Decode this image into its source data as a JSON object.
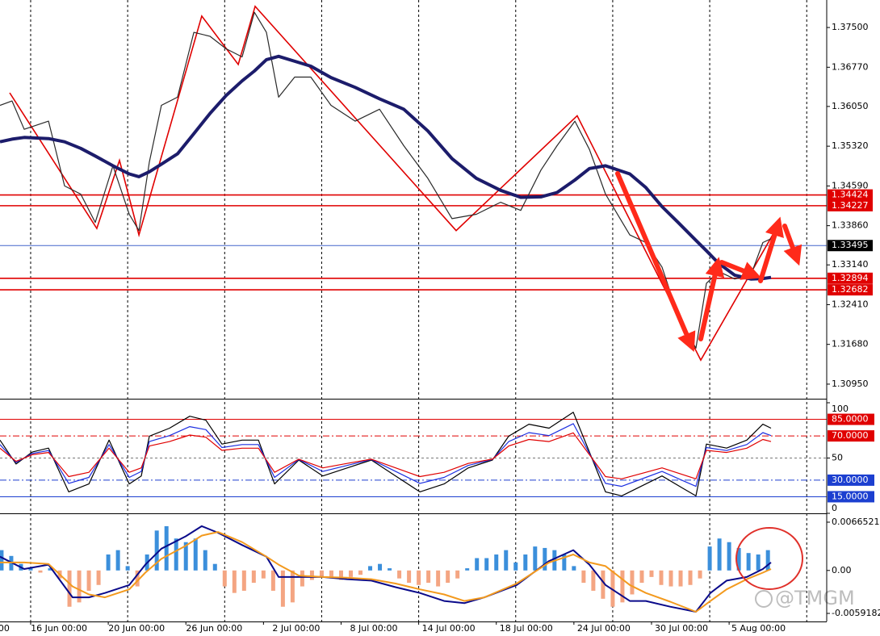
{
  "watermark": "@TMGM",
  "chart_data": [
    {
      "type": "line",
      "xlim": [
        -1.58,
        41.03
      ],
      "xticks": [
        {
          "value": -4,
          "label": "00"
        },
        {
          "value": 0,
          "label": "16 Jun 00:00"
        },
        {
          "value": 4,
          "label": "20 Jun 00:00"
        },
        {
          "value": 8,
          "label": "26 Jun 00:00"
        },
        {
          "value": 12,
          "label": "2 Jul 00:00"
        },
        {
          "value": 16,
          "label": "8 Jul 00:00"
        },
        {
          "value": 20,
          "label": "14 Jul 00:00"
        },
        {
          "value": 24,
          "label": "18 Jul 00:00"
        },
        {
          "value": 28,
          "label": "24 Jul 00:00"
        },
        {
          "value": 32,
          "label": "30 Jul 00:00"
        },
        {
          "value": 36,
          "label": "5 Aug 00:00"
        }
      ],
      "xgrid": [
        0,
        5,
        10,
        15,
        20,
        25,
        30,
        35,
        40
      ],
      "ylim": [
        1.30697,
        1.38005
      ],
      "yticks": [
        {
          "value": 1.375,
          "label": "1.37500"
        },
        {
          "value": 1.3677,
          "label": "1.36770"
        },
        {
          "value": 1.3605,
          "label": "1.36050"
        },
        {
          "value": 1.3532,
          "label": "1.35320"
        },
        {
          "value": 1.3459,
          "label": "1.34590"
        },
        {
          "value": 1.3386,
          "label": "1.33860"
        },
        {
          "value": 1.3314,
          "label": "1.33140"
        },
        {
          "value": 1.3241,
          "label": "1.32410"
        },
        {
          "value": 1.3168,
          "label": "1.31680"
        },
        {
          "value": 1.3095,
          "label": "1.30950"
        }
      ],
      "x": [
        -1.58,
        -0.96,
        -0.33,
        0.92,
        1.75,
        2.58,
        3.33,
        4.24,
        5.08,
        5.58,
        6.12,
        6.74,
        7.57,
        8.41,
        9.24,
        10.07,
        10.9,
        11.53,
        12.15,
        12.78,
        13.61,
        14.44,
        15.48,
        16.73,
        17.98,
        19.23,
        20.47,
        21.72,
        22.97,
        24.22,
        25.26,
        26.3,
        27.13,
        28.05,
        28.8,
        29.63,
        30.88,
        31.71,
        32.54,
        33.37,
        34.29,
        34.83,
        35.46,
        36.29,
        37.12,
        37.74,
        38.16
      ],
      "series": [
        {
          "color": "#2a2a2a",
          "values": [
            1.3607,
            1.3615,
            1.3563,
            1.3578,
            1.3459,
            1.3444,
            1.3392,
            1.3496,
            1.3407,
            1.3377,
            1.3503,
            1.3607,
            1.3622,
            1.3741,
            1.3734,
            1.3711,
            1.3696,
            1.3778,
            1.3741,
            1.3622,
            1.3659,
            1.3659,
            1.3607,
            1.3578,
            1.36,
            1.3533,
            1.3473,
            1.3399,
            1.3407,
            1.3429,
            1.3414,
            1.3488,
            1.3533,
            1.3578,
            1.3526,
            1.3444,
            1.3369,
            1.3355,
            1.331,
            1.3221,
            1.3161,
            1.328,
            1.3302,
            1.3288,
            1.3295,
            1.3355,
            1.3362
          ]
        },
        {
          "color": "#1c1c6b",
          "values": [
            1.354,
            1.3545,
            1.3548,
            1.3546,
            1.354,
            1.3528,
            1.3514,
            1.3496,
            1.3481,
            1.3476,
            1.3485,
            1.3499,
            1.3518,
            1.3555,
            1.3592,
            1.3625,
            1.3652,
            1.367,
            1.3691,
            1.3697,
            1.3688,
            1.3679,
            1.3658,
            1.364,
            1.3619,
            1.36,
            1.356,
            1.3509,
            1.3473,
            1.3451,
            1.3438,
            1.3439,
            1.3447,
            1.347,
            1.3491,
            1.3496,
            1.3481,
            1.3456,
            1.3421,
            1.3392,
            1.3359,
            1.334,
            1.3317,
            1.3295,
            1.3288,
            1.3289,
            1.3291
          ]
        }
      ],
      "zigzag": {
        "color": "#e00000",
        "x": [
          -1.08,
          3.41,
          4.58,
          5.58,
          8.82,
          10.7,
          11.57,
          21.93,
          28.17,
          34.54,
          38.37
        ],
        "values": [
          1.363,
          1.3381,
          1.3506,
          1.3369,
          1.3771,
          1.3682,
          1.3789,
          1.3377,
          1.3588,
          1.3139,
          1.3377
        ]
      },
      "hlines": [
        {
          "value": 1.34424,
          "color": "#e00000",
          "box": "#e00000"
        },
        {
          "value": 1.34227,
          "color": "#e00000",
          "box": "#e00000"
        },
        {
          "value": 1.33495,
          "color": "#4466cc",
          "box": "#000000"
        },
        {
          "value": 1.32894,
          "color": "#e00000",
          "box": "#e00000"
        },
        {
          "value": 1.32682,
          "color": "#e00000",
          "box": "#e00000"
        }
      ]
    },
    {
      "type": "line",
      "ylim": [
        0,
        100
      ],
      "yticks": [
        100,
        50,
        0
      ],
      "levels": [
        {
          "value": 85,
          "label": "85.0000",
          "color": "#e00000",
          "style": "solid"
        },
        {
          "value": 70,
          "label": "70.0000",
          "color": "#e00000",
          "style": "dashdot"
        },
        {
          "value": 30,
          "label": "30.0000",
          "color": "#1c3fd0",
          "style": "dashdot"
        },
        {
          "value": 15,
          "label": "15.0000",
          "color": "#1c3fd0",
          "style": "solid"
        }
      ],
      "x": [
        -1.58,
        -0.75,
        0.08,
        0.92,
        1.96,
        3.0,
        4.04,
        5.08,
        5.7,
        6.12,
        7.16,
        8.2,
        9.03,
        9.86,
        10.9,
        11.74,
        12.57,
        13.82,
        15.06,
        16.31,
        17.56,
        18.81,
        20.06,
        21.31,
        22.55,
        23.8,
        24.64,
        25.68,
        26.72,
        27.97,
        28.8,
        29.63,
        30.46,
        31.71,
        32.54,
        33.58,
        34.29,
        34.83,
        35.87,
        36.91,
        37.74,
        38.16
      ],
      "series": [
        {
          "color": "#000000",
          "values": [
            66.2,
            44.6,
            55.4,
            59.0,
            19.4,
            26.6,
            66.2,
            26.6,
            33.8,
            69.8,
            77.0,
            87.8,
            84.2,
            62.6,
            66.2,
            66.2,
            26.6,
            48.2,
            33.8,
            41.0,
            48.2,
            33.8,
            19.4,
            26.6,
            41.0,
            48.2,
            69.8,
            80.6,
            77.0,
            91.4,
            55.4,
            19.4,
            15.8,
            26.6,
            33.8,
            23.0,
            15.8,
            62.6,
            59.0,
            66.2,
            80.6,
            77.0
          ]
        },
        {
          "color": "#1c2fe0",
          "values": [
            62.2,
            46.0,
            54.1,
            56.8,
            27.1,
            32.5,
            62.2,
            32.5,
            37.9,
            64.9,
            70.3,
            78.4,
            75.7,
            59.5,
            62.2,
            62.2,
            32.5,
            48.7,
            37.9,
            43.3,
            48.7,
            37.9,
            27.1,
            32.5,
            43.3,
            48.7,
            64.9,
            73.0,
            70.3,
            81.1,
            54.1,
            27.1,
            24.4,
            32.5,
            37.9,
            29.8,
            24.4,
            59.5,
            56.8,
            62.2,
            73.0,
            70.3
          ]
        },
        {
          "color": "#e00000",
          "values": [
            58.9,
            47.0,
            53.0,
            55.0,
            33.2,
            37.1,
            58.9,
            37.1,
            41.1,
            60.9,
            64.9,
            70.8,
            68.8,
            56.9,
            58.9,
            58.9,
            37.1,
            49.0,
            41.1,
            45.1,
            49.0,
            41.1,
            33.2,
            37.1,
            45.1,
            49.0,
            60.9,
            66.8,
            64.9,
            72.8,
            53.0,
            33.2,
            31.2,
            37.1,
            41.1,
            35.2,
            31.2,
            56.9,
            55.0,
            58.9,
            66.8,
            64.9
          ]
        }
      ]
    },
    {
      "type": "line",
      "ylim": [
        -0.00703,
        0.00765
      ],
      "yticks": [
        0.0066521,
        {
          "value": 0,
          "label": "0.00"
        },
        -0.0059182
      ],
      "histogram": {
        "up_color": "#3b8fdb",
        "down_color": "#f4a582",
        "x": [
          -1.5,
          -1,
          -0.5,
          0,
          0.5,
          1,
          1.5,
          2,
          2.5,
          3,
          3.5,
          4,
          4.5,
          5,
          5.5,
          6,
          6.5,
          7,
          7.5,
          8,
          8.5,
          9,
          9.5,
          10,
          10.5,
          11,
          11.5,
          12,
          12.5,
          13,
          13.5,
          14,
          14.5,
          15,
          15.5,
          16,
          16.5,
          17,
          17.5,
          18,
          18.5,
          19,
          19.5,
          20,
          20.5,
          21,
          21.5,
          22,
          22.5,
          23,
          23.5,
          24,
          24.5,
          25,
          25.5,
          26,
          26.5,
          27,
          27.5,
          28,
          28.5,
          29,
          29.5,
          30,
          30.5,
          31,
          31.5,
          32,
          32.5,
          33,
          33.5,
          34,
          34.5,
          35,
          35.5,
          36,
          36.5,
          37,
          37.5,
          38
        ],
        "values": [
          0.0028,
          0.002,
          0.0009,
          0.0004,
          -0.0003,
          0.0003,
          -0.0011,
          -0.005,
          -0.0044,
          -0.0028,
          -0.002,
          0.0022,
          0.0028,
          0.0006,
          -0.0022,
          0.0022,
          0.0055,
          0.0061,
          0.0044,
          0.0039,
          0.0044,
          0.0028,
          0.0009,
          -0.0022,
          -0.0031,
          -0.0028,
          -0.0017,
          -0.0011,
          -0.0028,
          -0.005,
          -0.0044,
          -0.0022,
          -0.0013,
          -0.0009,
          -0.0011,
          -0.0013,
          -0.0009,
          -0.0006,
          0.0006,
          0.0009,
          0.0003,
          -0.0011,
          -0.0017,
          -0.002,
          -0.0017,
          -0.0022,
          -0.0017,
          -0.0011,
          0.0003,
          0.0017,
          0.0017,
          0.0022,
          0.0028,
          0.0011,
          0.0022,
          0.0033,
          0.0031,
          0.0028,
          0.0022,
          0.0006,
          -0.0017,
          -0.0028,
          -0.0039,
          -0.005,
          -0.0044,
          -0.0033,
          -0.0017,
          -0.0009,
          -0.002,
          -0.0022,
          -0.0022,
          -0.002,
          -0.0011,
          0.0033,
          0.0044,
          0.0039,
          0.0031,
          0.0024,
          0.0022,
          0.0028
        ]
      },
      "x": [
        -1.58,
        -0.33,
        0.92,
        2.16,
        3.0,
        3.83,
        5.08,
        5.91,
        6.74,
        7.99,
        8.82,
        9.65,
        10.9,
        12.15,
        12.78,
        13.82,
        15.06,
        16.31,
        17.56,
        18.81,
        20.06,
        21.31,
        22.35,
        23.39,
        25.05,
        26.72,
        27.97,
        28.8,
        29.63,
        30.88,
        31.71,
        32.96,
        34.29,
        35.04,
        35.87,
        36.91,
        37.74,
        38.16
      ],
      "series": [
        {
          "color": "#0a0a8a",
          "values": [
            0.0019,
            0.0002,
            0.0008,
            -0.0037,
            -0.0037,
            -0.0031,
            -0.002,
            0.0008,
            0.003,
            0.0047,
            0.0061,
            0.0052,
            0.0035,
            0.0019,
            -0.0009,
            -0.0009,
            -0.0009,
            -0.0012,
            -0.0014,
            -0.0023,
            -0.0031,
            -0.0042,
            -0.0045,
            -0.0037,
            -0.002,
            0.0013,
            0.0028,
            0.0008,
            -0.002,
            -0.0042,
            -0.0042,
            -0.005,
            -0.0057,
            -0.0031,
            -0.0014,
            -0.0009,
            0.0002,
            0.0011
          ]
        },
        {
          "color": "#f39a1e",
          "values": [
            0.0011,
            0.0011,
            0.0009,
            -0.0022,
            -0.0033,
            -0.0037,
            -0.0026,
            -0.0003,
            0.0016,
            0.0034,
            0.0048,
            0.0053,
            0.0039,
            0.0019,
            0.0008,
            -0.0007,
            -0.0009,
            -0.001,
            -0.0012,
            -0.0018,
            -0.0026,
            -0.0033,
            -0.0042,
            -0.0037,
            -0.0018,
            0.0011,
            0.0022,
            0.0011,
            0.0006,
            -0.002,
            -0.0031,
            -0.0043,
            -0.0057,
            -0.0042,
            -0.0026,
            -0.0012,
            -0.0003,
            0.0002
          ]
        }
      ]
    }
  ]
}
